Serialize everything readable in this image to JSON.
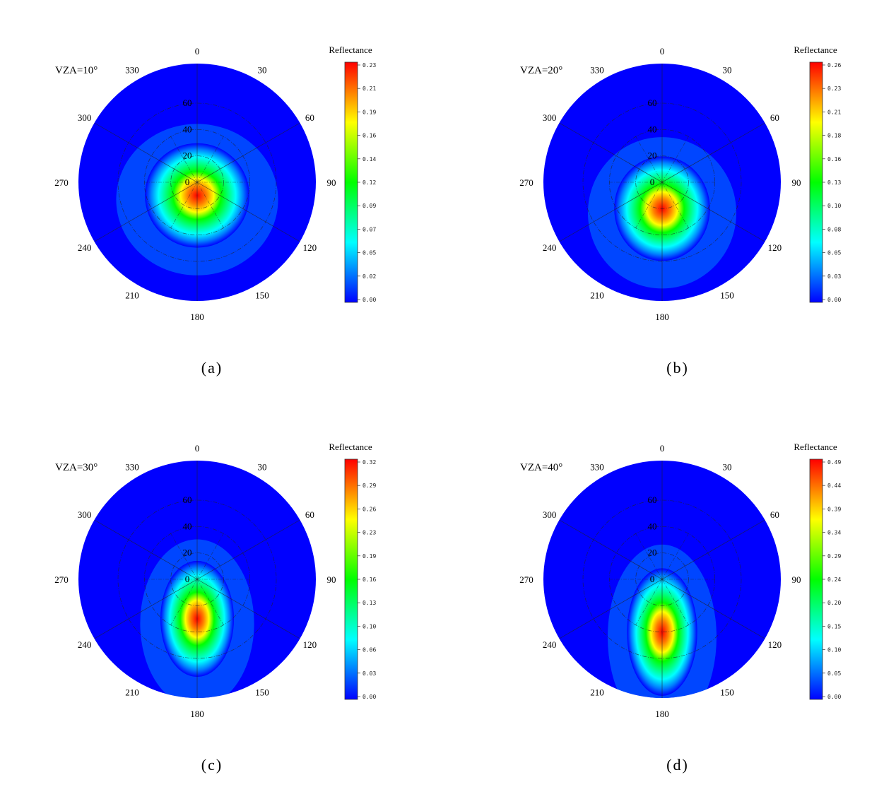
{
  "colorbar_label": "Reflectance",
  "azimuth_labels": [
    "0",
    "30",
    "60",
    "90",
    "120",
    "150",
    "180",
    "210",
    "240",
    "270",
    "300",
    "330"
  ],
  "zenith_ring_labels": [
    "0",
    "20",
    "40",
    "60"
  ],
  "colormap": [
    "#0000ff",
    "#0080ff",
    "#00ffff",
    "#00ff80",
    "#00ff00",
    "#80ff00",
    "#ffff00",
    "#ff8000",
    "#ff0000"
  ],
  "chart_data": [
    {
      "type": "heatmap",
      "projection": "polar",
      "title": "VZA=10°",
      "caption": "(a)",
      "colorbar_label": "Reflectance",
      "colorbar_ticks": [
        "0.23",
        "0.21",
        "0.19",
        "0.16",
        "0.14",
        "0.12",
        "0.09",
        "0.07",
        "0.05",
        "0.02",
        "0.00"
      ],
      "vmin": 0.0,
      "vmax": 0.23,
      "hotspot": {
        "azimuth": 180,
        "zenith": 10,
        "peak": 0.23
      },
      "spread": {
        "zenith": 18,
        "azimuth_deg": 90
      }
    },
    {
      "type": "heatmap",
      "projection": "polar",
      "title": "VZA=20°",
      "caption": "(b)",
      "colorbar_label": "Reflectance",
      "colorbar_ticks": [
        "0.26",
        "0.23",
        "0.21",
        "0.18",
        "0.16",
        "0.13",
        "0.10",
        "0.08",
        "0.05",
        "0.03",
        "0.00"
      ],
      "vmin": 0.0,
      "vmax": 0.26,
      "hotspot": {
        "azimuth": 180,
        "zenith": 20,
        "peak": 0.26
      },
      "spread": {
        "zenith": 18,
        "azimuth_deg": 55
      }
    },
    {
      "type": "heatmap",
      "projection": "polar",
      "title": "VZA=30°",
      "caption": "(c)",
      "colorbar_label": "Reflectance",
      "colorbar_ticks": [
        "0.32",
        "0.29",
        "0.26",
        "0.23",
        "0.19",
        "0.16",
        "0.13",
        "0.10",
        "0.06",
        "0.03",
        "0.00"
      ],
      "vmin": 0.0,
      "vmax": 0.32,
      "hotspot": {
        "azimuth": 180,
        "zenith": 30,
        "peak": 0.32
      },
      "spread": {
        "zenith": 20,
        "azimuth_deg": 38
      }
    },
    {
      "type": "heatmap",
      "projection": "polar",
      "title": "VZA=40°",
      "caption": "(d)",
      "colorbar_label": "Reflectance",
      "colorbar_ticks": [
        "0.49",
        "0.44",
        "0.39",
        "0.34",
        "0.29",
        "0.24",
        "0.20",
        "0.15",
        "0.10",
        "0.05",
        "0.00"
      ],
      "vmin": 0.0,
      "vmax": 0.49,
      "hotspot": {
        "azimuth": 180,
        "zenith": 40,
        "peak": 0.49
      },
      "spread": {
        "zenith": 22,
        "azimuth_deg": 28
      }
    }
  ]
}
